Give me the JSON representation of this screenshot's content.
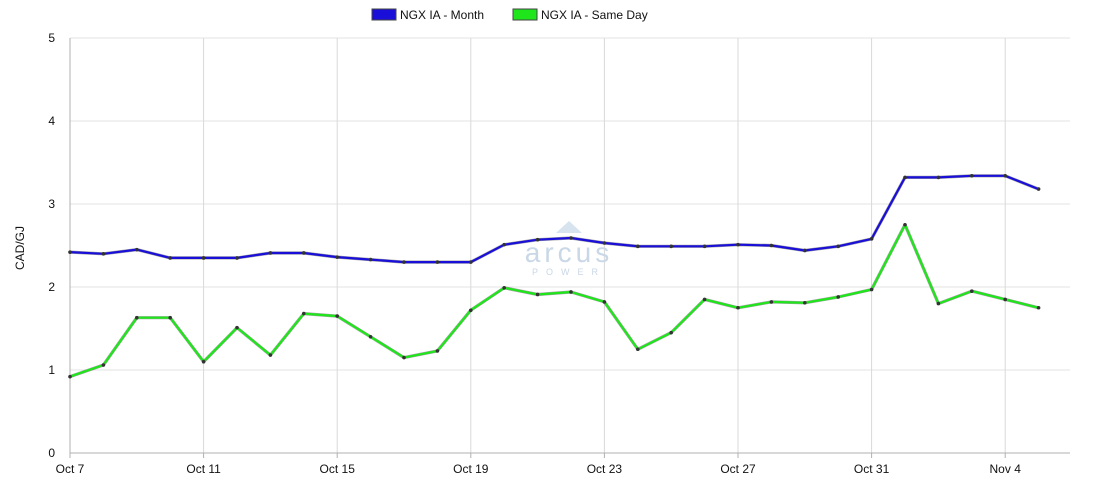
{
  "watermark": {
    "brand": "arcus",
    "sub": "POWER"
  },
  "chart_data": {
    "type": "line",
    "ylabel": "CAD/GJ",
    "xlabel": "",
    "ylim": [
      0,
      5
    ],
    "y_ticks": [
      "0",
      "1",
      "2",
      "3",
      "4",
      "5"
    ],
    "x_dates": [
      "Oct 7",
      "Oct 8",
      "Oct 9",
      "Oct 10",
      "Oct 11",
      "Oct 12",
      "Oct 13",
      "Oct 14",
      "Oct 15",
      "Oct 16",
      "Oct 17",
      "Oct 18",
      "Oct 19",
      "Oct 20",
      "Oct 21",
      "Oct 22",
      "Oct 23",
      "Oct 24",
      "Oct 25",
      "Oct 26",
      "Oct 27",
      "Oct 28",
      "Oct 29",
      "Oct 30",
      "Oct 31",
      "Nov 1",
      "Nov 2",
      "Nov 3",
      "Nov 4",
      "Nov 5"
    ],
    "x_tick_labels": [
      {
        "index": 0,
        "label": "Oct 7"
      },
      {
        "index": 4,
        "label": "Oct 11"
      },
      {
        "index": 8,
        "label": "Oct 15"
      },
      {
        "index": 12,
        "label": "Oct 19"
      },
      {
        "index": 16,
        "label": "Oct 23"
      },
      {
        "index": 20,
        "label": "Oct 27"
      },
      {
        "index": 24,
        "label": "Oct 31"
      },
      {
        "index": 28,
        "label": "Nov 4"
      }
    ],
    "grid": true,
    "legend_position": "top-center",
    "series": [
      {
        "name": "NGX IA - Month",
        "color": "#1a0fd8",
        "values": [
          2.42,
          2.4,
          2.45,
          2.35,
          2.35,
          2.35,
          2.41,
          2.41,
          2.36,
          2.33,
          2.3,
          2.3,
          2.3,
          2.51,
          2.57,
          2.59,
          2.53,
          2.49,
          2.49,
          2.49,
          2.51,
          2.5,
          2.44,
          2.49,
          2.58,
          3.32,
          3.32,
          3.34,
          3.34,
          3.18
        ]
      },
      {
        "name": "NGX IA - Same Day",
        "color": "#1ee61a",
        "values": [
          0.92,
          1.06,
          1.63,
          1.63,
          1.1,
          1.51,
          1.18,
          1.68,
          1.65,
          1.4,
          1.15,
          1.23,
          1.72,
          1.99,
          1.91,
          1.94,
          1.82,
          1.25,
          1.45,
          1.85,
          1.75,
          1.82,
          1.81,
          1.88,
          1.97,
          2.75,
          1.8,
          1.95,
          1.85,
          1.75
        ]
      }
    ]
  }
}
